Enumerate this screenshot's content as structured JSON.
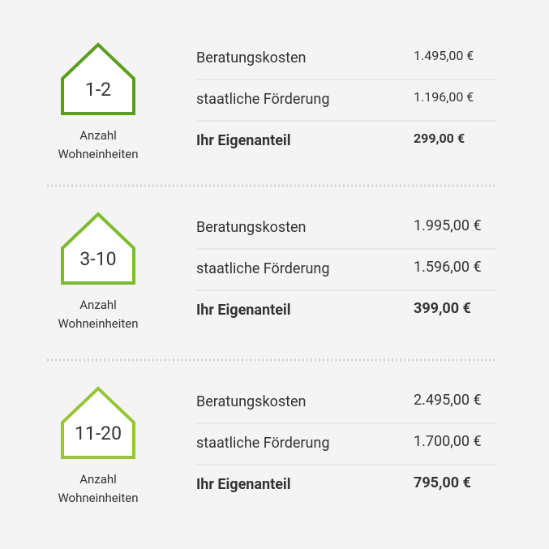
{
  "groups": [
    {
      "units": "1-2",
      "caption": [
        "Anzahl",
        "Wohneinheiten"
      ],
      "color": "#5a9e1e",
      "rows": [
        {
          "label": "Beratungskosten",
          "amount": "1.495,00 €"
        },
        {
          "label": "staatliche Förderung",
          "amount": "1.196,00 €"
        },
        {
          "label": "Ihr Eigenanteil",
          "amount": "299,00 €"
        }
      ]
    },
    {
      "units": "3-10",
      "caption": [
        "Anzahl",
        "Wohneinheiten"
      ],
      "color": "#7dbb2e",
      "rows": [
        {
          "label": "Beratungskosten",
          "amount": "1.995,00 €"
        },
        {
          "label": "staatliche Förderung",
          "amount": "1.596,00 €"
        },
        {
          "label": "Ihr Eigenanteil",
          "amount": "399,00 €"
        }
      ]
    },
    {
      "units": "11-20",
      "caption": [
        "Anzahl",
        "Wohneinheiten"
      ],
      "color": "#98c43a",
      "rows": [
        {
          "label": "Beratungskosten",
          "amount": "2.495,00 €"
        },
        {
          "label": "staatliche Förderung",
          "amount": "1.700,00 €"
        },
        {
          "label": "Ihr Eigenanteil",
          "amount": "795,00 €"
        }
      ]
    }
  ]
}
